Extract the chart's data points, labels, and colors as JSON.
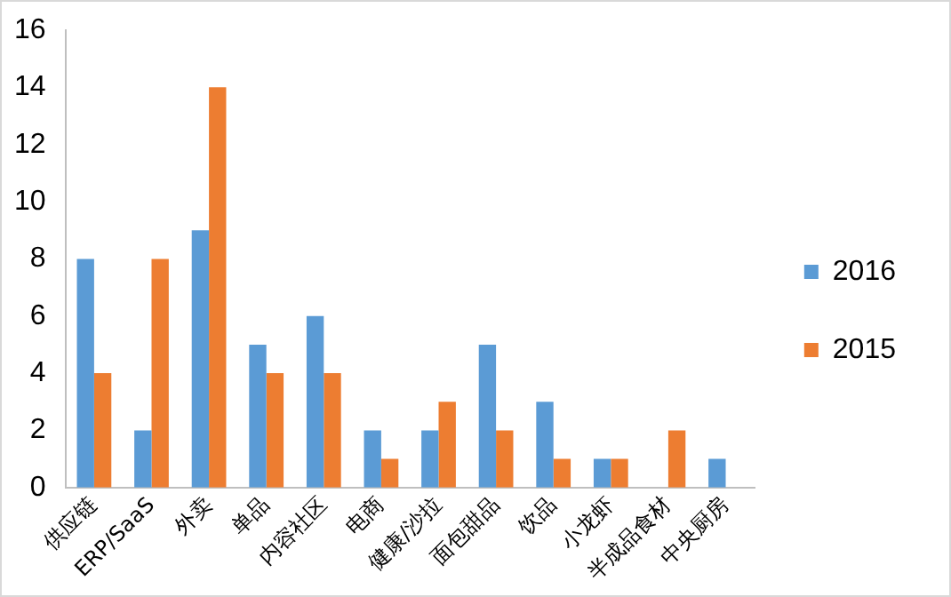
{
  "chart_data": {
    "type": "bar",
    "categories": [
      "供应链",
      "ERP/SaaS",
      "外卖",
      "单品",
      "内容社区",
      "电商",
      "健康/沙拉",
      "面包甜品",
      "饮品",
      "小龙虾",
      "半成品食材",
      "中央厨房"
    ],
    "series": [
      {
        "name": "2016",
        "color": "#5b9bd5",
        "values": [
          8,
          2,
          9,
          5,
          6,
          2,
          2,
          5,
          3,
          1,
          0,
          1
        ]
      },
      {
        "name": "2015",
        "color": "#ed7d31",
        "values": [
          4,
          8,
          14,
          4,
          4,
          1,
          3,
          2,
          1,
          1,
          2,
          0
        ]
      }
    ],
    "ylim": [
      0,
      16
    ],
    "yticks": [
      0,
      2,
      4,
      6,
      8,
      10,
      12,
      14,
      16
    ],
    "grid": false,
    "legend": "right"
  }
}
